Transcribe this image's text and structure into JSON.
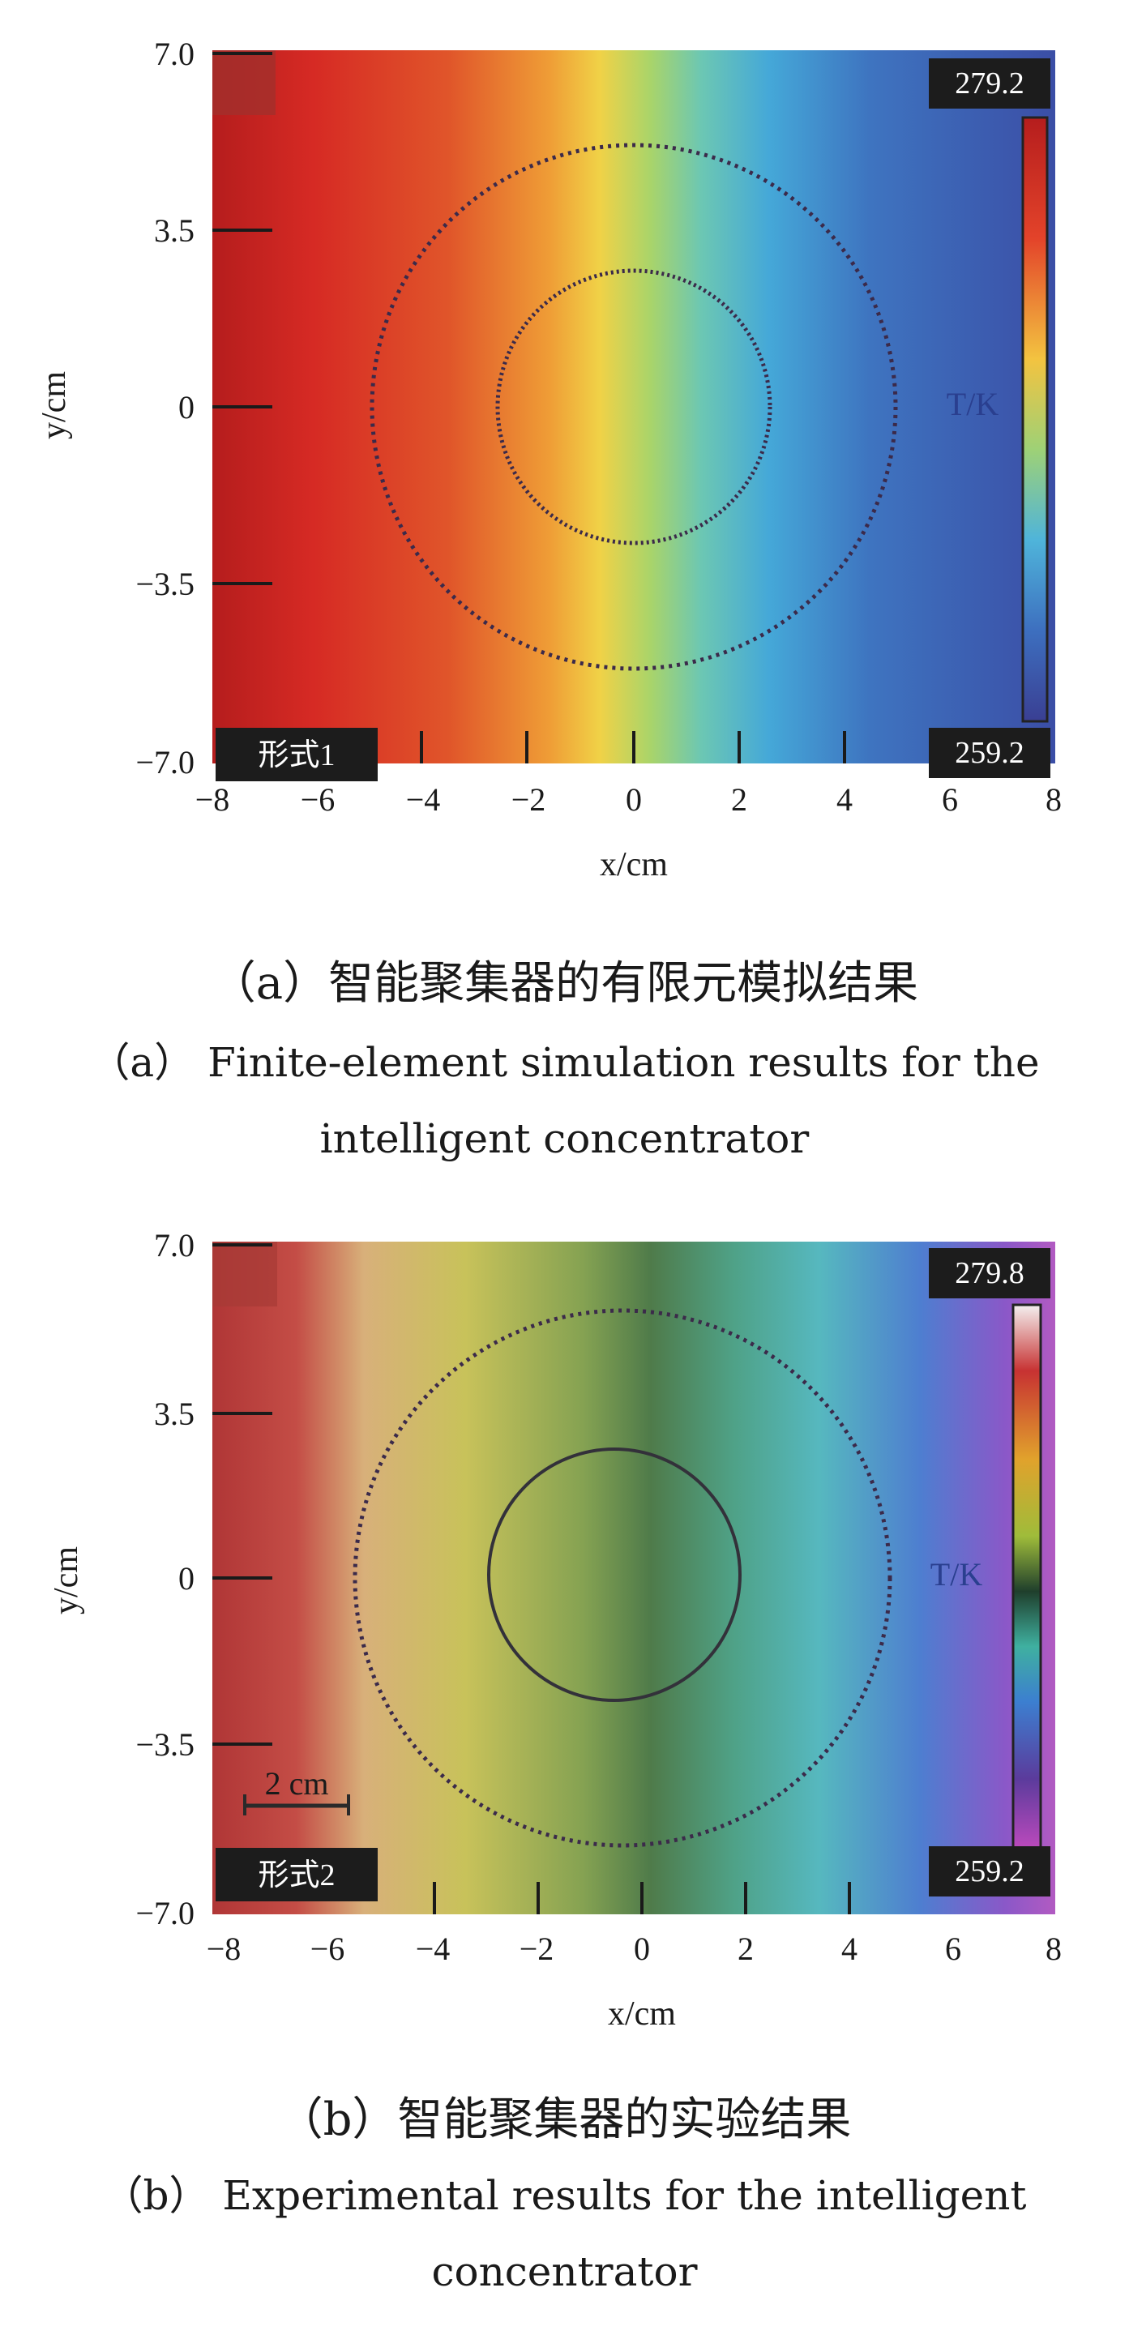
{
  "panel_a": {
    "chart_data": {
      "type": "heatmap",
      "xlabel": "x/cm",
      "ylabel": "y/cm",
      "xlim": [
        -8,
        8
      ],
      "ylim": [
        -7.0,
        7.0
      ],
      "x_ticks": [
        "−8",
        "−6",
        "−4",
        "−2",
        "0",
        "2",
        "4",
        "6",
        "8"
      ],
      "y_ticks": [
        "7.0",
        "3.5",
        "0",
        "−3.5",
        "−7.0"
      ],
      "colorbar": {
        "title": "T/K",
        "max": "279.2",
        "min": "259.2"
      },
      "tag": "形式1",
      "inner_circle_radius_cm": 2.6,
      "outer_circle_radius_cm": 5.0,
      "scale_bar": null
    },
    "caption_zh": "（a）智能聚集器的有限元模拟结果",
    "caption_en_line1": "（a） Finite-element simulation results for the",
    "caption_en_line2": "intelligent concentrator"
  },
  "panel_b": {
    "chart_data": {
      "type": "heatmap",
      "xlabel": "x/cm",
      "ylabel": "y/cm",
      "xlim": [
        -8,
        8
      ],
      "ylim": [
        -7.0,
        7.0
      ],
      "x_ticks": [
        "−8",
        "−6",
        "−4",
        "−2",
        "0",
        "2",
        "4",
        "6",
        "8"
      ],
      "y_ticks": [
        "7.0",
        "3.5",
        "0",
        "−3.5",
        "−7.0"
      ],
      "colorbar": {
        "title": "T/K",
        "max": "279.8",
        "min": "259.2"
      },
      "tag": "形式2",
      "inner_circle_radius_cm": 2.4,
      "outer_circle_radius_cm": 5.2,
      "scale_bar": "2 cm"
    },
    "caption_zh": "（b）智能聚集器的实验结果",
    "caption_en_line1": "（b） Experimental results for the intelligent",
    "caption_en_line2": "concentrator"
  }
}
